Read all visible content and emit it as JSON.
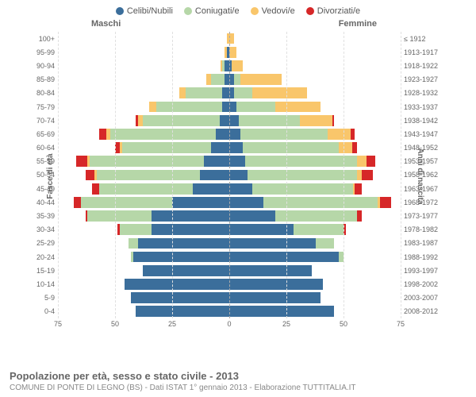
{
  "legend": [
    {
      "label": "Celibi/Nubili",
      "color": "#3b6e9b"
    },
    {
      "label": "Coniugati/e",
      "color": "#b6d7a8"
    },
    {
      "label": "Vedovi/e",
      "color": "#f9c66b"
    },
    {
      "label": "Divorziati/e",
      "color": "#d62728"
    }
  ],
  "gender_labels": {
    "m": "Maschi",
    "f": "Femmine"
  },
  "y_left_title": "Fasce di età",
  "y_right_title": "Anni di nascita",
  "x_max": 75,
  "x_ticks": [
    75,
    50,
    25,
    0,
    25,
    50,
    75
  ],
  "colors": {
    "single": "#3b6e9b",
    "married": "#b6d7a8",
    "widowed": "#f9c66b",
    "divorced": "#d62728",
    "grid": "#e0e0e0",
    "center": "#aaaaaa"
  },
  "rows": [
    {
      "age": "100+",
      "year": "≤ 1912",
      "m": {
        "s": 0,
        "m": 0,
        "w": 1,
        "d": 0
      },
      "f": {
        "s": 0,
        "m": 0,
        "w": 2,
        "d": 0
      }
    },
    {
      "age": "95-99",
      "year": "1913-1917",
      "m": {
        "s": 1,
        "m": 0,
        "w": 1,
        "d": 0
      },
      "f": {
        "s": 0,
        "m": 0,
        "w": 3,
        "d": 0
      }
    },
    {
      "age": "90-94",
      "year": "1918-1922",
      "m": {
        "s": 2,
        "m": 1,
        "w": 1,
        "d": 0
      },
      "f": {
        "s": 1,
        "m": 0,
        "w": 5,
        "d": 0
      }
    },
    {
      "age": "85-89",
      "year": "1923-1927",
      "m": {
        "s": 2,
        "m": 6,
        "w": 2,
        "d": 0
      },
      "f": {
        "s": 2,
        "m": 3,
        "w": 18,
        "d": 0
      }
    },
    {
      "age": "80-84",
      "year": "1928-1932",
      "m": {
        "s": 3,
        "m": 16,
        "w": 3,
        "d": 0
      },
      "f": {
        "s": 2,
        "m": 8,
        "w": 24,
        "d": 0
      }
    },
    {
      "age": "75-79",
      "year": "1933-1937",
      "m": {
        "s": 3,
        "m": 29,
        "w": 3,
        "d": 0
      },
      "f": {
        "s": 3,
        "m": 17,
        "w": 20,
        "d": 0
      }
    },
    {
      "age": "70-74",
      "year": "1938-1942",
      "m": {
        "s": 4,
        "m": 34,
        "w": 2,
        "d": 1
      },
      "f": {
        "s": 4,
        "m": 27,
        "w": 14,
        "d": 1
      }
    },
    {
      "age": "65-69",
      "year": "1943-1947",
      "m": {
        "s": 6,
        "m": 46,
        "w": 2,
        "d": 3
      },
      "f": {
        "s": 5,
        "m": 38,
        "w": 10,
        "d": 2
      }
    },
    {
      "age": "60-64",
      "year": "1948-1952",
      "m": {
        "s": 8,
        "m": 39,
        "w": 1,
        "d": 2
      },
      "f": {
        "s": 6,
        "m": 42,
        "w": 6,
        "d": 2
      }
    },
    {
      "age": "55-59",
      "year": "1953-1957",
      "m": {
        "s": 11,
        "m": 50,
        "w": 1,
        "d": 5
      },
      "f": {
        "s": 7,
        "m": 49,
        "w": 4,
        "d": 4
      }
    },
    {
      "age": "50-54",
      "year": "1958-1962",
      "m": {
        "s": 13,
        "m": 45,
        "w": 1,
        "d": 4
      },
      "f": {
        "s": 8,
        "m": 48,
        "w": 2,
        "d": 5
      }
    },
    {
      "age": "45-49",
      "year": "1963-1967",
      "m": {
        "s": 16,
        "m": 41,
        "w": 0,
        "d": 3
      },
      "f": {
        "s": 10,
        "m": 44,
        "w": 1,
        "d": 3
      }
    },
    {
      "age": "40-44",
      "year": "1968-1972",
      "m": {
        "s": 25,
        "m": 40,
        "w": 0,
        "d": 3
      },
      "f": {
        "s": 15,
        "m": 50,
        "w": 1,
        "d": 5
      }
    },
    {
      "age": "35-39",
      "year": "1973-1977",
      "m": {
        "s": 34,
        "m": 28,
        "w": 0,
        "d": 1
      },
      "f": {
        "s": 20,
        "m": 36,
        "w": 0,
        "d": 2
      }
    },
    {
      "age": "30-34",
      "year": "1978-1982",
      "m": {
        "s": 34,
        "m": 14,
        "w": 0,
        "d": 1
      },
      "f": {
        "s": 28,
        "m": 22,
        "w": 0,
        "d": 1
      }
    },
    {
      "age": "25-29",
      "year": "1983-1987",
      "m": {
        "s": 40,
        "m": 4,
        "w": 0,
        "d": 0
      },
      "f": {
        "s": 38,
        "m": 8,
        "w": 0,
        "d": 0
      }
    },
    {
      "age": "20-24",
      "year": "1988-1992",
      "m": {
        "s": 42,
        "m": 1,
        "w": 0,
        "d": 0
      },
      "f": {
        "s": 48,
        "m": 2,
        "w": 0,
        "d": 0
      }
    },
    {
      "age": "15-19",
      "year": "1993-1997",
      "m": {
        "s": 38,
        "m": 0,
        "w": 0,
        "d": 0
      },
      "f": {
        "s": 36,
        "m": 0,
        "w": 0,
        "d": 0
      }
    },
    {
      "age": "10-14",
      "year": "1998-2002",
      "m": {
        "s": 46,
        "m": 0,
        "w": 0,
        "d": 0
      },
      "f": {
        "s": 41,
        "m": 0,
        "w": 0,
        "d": 0
      }
    },
    {
      "age": "5-9",
      "year": "2003-2007",
      "m": {
        "s": 43,
        "m": 0,
        "w": 0,
        "d": 0
      },
      "f": {
        "s": 40,
        "m": 0,
        "w": 0,
        "d": 0
      }
    },
    {
      "age": "0-4",
      "year": "2008-2012",
      "m": {
        "s": 41,
        "m": 0,
        "w": 0,
        "d": 0
      },
      "f": {
        "s": 46,
        "m": 0,
        "w": 0,
        "d": 0
      }
    }
  ],
  "footer_title": "Popolazione per età, sesso e stato civile - 2013",
  "footer_sub": "COMUNE DI PONTE DI LEGNO (BS) - Dati ISTAT 1° gennaio 2013 - Elaborazione TUTTITALIA.IT"
}
